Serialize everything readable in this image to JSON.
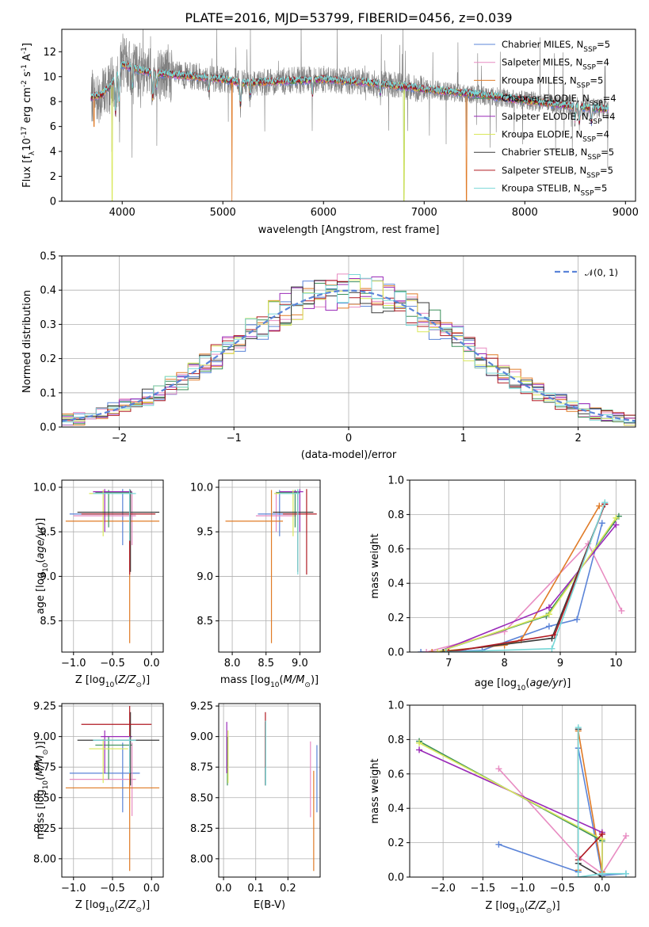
{
  "figure": {
    "title": "PLATE=2016, MJD=53799, FIBERID=0456, z=0.039"
  },
  "colors": {
    "Chabrier MILES": "#5b84d8",
    "Salpeter MILES": "#e88cc2",
    "Kroupa MILES": "#e07b27",
    "Chabrier ELODIE": "#3c8f5a",
    "Salpeter ELODIE": "#9a2ab8",
    "Kroupa ELODIE": "#d9e85a",
    "Chabrier STELIB": "#3a3a3a",
    "Salpeter STELIB": "#b01a22",
    "Kroupa STELIB": "#78d7d7",
    "data": "#7f7f7f",
    "gauss": "#5b84d8",
    "grid": "#b0b0b0"
  },
  "chart_data": [
    {
      "id": "spectrum",
      "type": "line",
      "xlabel": "wavelength [Angstrom, rest frame]",
      "ylabel_parts": [
        "Flux [f",
        "λ",
        "10",
        "-17",
        " erg cm",
        "-2",
        " s",
        "-1",
        " A",
        "-1",
        "]"
      ],
      "xlim": [
        3400,
        9100
      ],
      "ylim": [
        0,
        13.8
      ],
      "xticks": [
        4000,
        5000,
        6000,
        7000,
        8000,
        9000
      ],
      "yticks": [
        0,
        2,
        4,
        6,
        8,
        10,
        12
      ],
      "grid": false,
      "legend_position": "top-right",
      "legend": [
        {
          "model": "Chabrier MILES",
          "n": "5"
        },
        {
          "model": "Salpeter MILES",
          "n": "4"
        },
        {
          "model": "Kroupa MILES",
          "n": "5"
        },
        {
          "model": "Chabrier ELODIE",
          "n": "4"
        },
        {
          "model": "Salpeter ELODIE",
          "n": "4"
        },
        {
          "model": "Kroupa ELODIE",
          "n": "4"
        },
        {
          "model": "Chabrier STELIB",
          "n": "5"
        },
        {
          "model": "Salpeter STELIB",
          "n": "5"
        },
        {
          "model": "Kroupa STELIB",
          "n": "5"
        }
      ],
      "continuum": [
        [
          3690,
          8.3
        ],
        [
          3800,
          8.6
        ],
        [
          3900,
          9.4
        ],
        [
          4000,
          11.0
        ],
        [
          4100,
          10.7
        ],
        [
          4300,
          10.3
        ],
        [
          4600,
          10.1
        ],
        [
          5000,
          9.8
        ],
        [
          5200,
          9.5
        ],
        [
          5500,
          9.6
        ],
        [
          6000,
          9.8
        ],
        [
          6500,
          9.5
        ],
        [
          7000,
          9.0
        ],
        [
          7500,
          8.6
        ],
        [
          8000,
          8.1
        ],
        [
          8500,
          7.6
        ],
        [
          8830,
          7.4
        ]
      ],
      "features": [
        {
          "x": 3934,
          "depth": 3.0
        },
        {
          "x": 3969,
          "depth": 2.5
        },
        {
          "x": 4102,
          "depth": 1.5
        },
        {
          "x": 4304,
          "depth": 2.0
        },
        {
          "x": 4340,
          "depth": 1.2
        },
        {
          "x": 4861,
          "depth": 1.0
        },
        {
          "x": 5175,
          "depth": 1.8
        },
        {
          "x": 5270,
          "depth": 0.9
        },
        {
          "x": 5890,
          "depth": 1.2
        },
        {
          "x": 6563,
          "depth": 0.8
        },
        {
          "x": 8498,
          "depth": 1.0
        },
        {
          "x": 8542,
          "depth": 1.3
        },
        {
          "x": 8662,
          "depth": 1.1
        }
      ],
      "model_gaps": [
        {
          "model": "Kroupa MILES",
          "x": 3720,
          "to": 6
        },
        {
          "model": "Kroupa MILES",
          "x": 5090,
          "to": 0
        },
        {
          "model": "Kroupa MILES",
          "x": 7420,
          "to": 0
        },
        {
          "model": "Chabrier ELODIE",
          "x": 6800,
          "to": 0
        },
        {
          "model": "Kroupa ELODIE",
          "x": 3900,
          "to": 0
        },
        {
          "model": "Kroupa ELODIE",
          "x": 6800,
          "to": 0
        }
      ]
    },
    {
      "id": "residuals",
      "type": "step",
      "xlabel": "(data-model)/error",
      "ylabel": "Normed distribution",
      "xlim": [
        -2.5,
        2.5
      ],
      "ylim": [
        0,
        0.5
      ],
      "xticks": [
        -2,
        -1,
        0,
        1,
        2
      ],
      "xtick_labels": [
        "−2",
        "−1",
        "0",
        "1",
        "2"
      ],
      "yticks": [
        0,
        0.1,
        0.2,
        0.3,
        0.4,
        0.5
      ],
      "ytick_labels": [
        "0.0",
        "0.1",
        "0.2",
        "0.3",
        "0.4",
        "0.5"
      ],
      "grid": true,
      "bin_width": 0.1,
      "legend_position": "top-right",
      "legend_label": "𝒩(0, 1)"
    },
    {
      "id": "age-vs-Z",
      "type": "errorbar",
      "xlabel": "Z [log10(Z/Z☉)]",
      "ylabel": "age  [log10(age/yr)]",
      "xlim": [
        -1.15,
        0.15
      ],
      "ylim": [
        8.15,
        10.08
      ],
      "xticks": [
        -1.0,
        -0.5,
        0.0
      ],
      "xtick_labels": [
        "−1.0",
        "−0.5",
        "0.0"
      ],
      "yticks": [
        8.5,
        9.0,
        9.5,
        10.0
      ],
      "ytick_labels": [
        "8.5",
        "9.0",
        "9.5",
        "10.0"
      ],
      "grid": true,
      "points": [
        {
          "model": "Chabrier MILES",
          "x": -0.37,
          "xlo": -1.05,
          "xhi": -0.2,
          "y": 9.7,
          "ylo": 9.35,
          "yhi": 9.98
        },
        {
          "model": "Salpeter MILES",
          "x": -0.25,
          "xlo": -1.0,
          "xhi": -0.2,
          "y": 9.68,
          "ylo": 9.35,
          "yhi": 9.95
        },
        {
          "model": "Kroupa MILES",
          "x": -0.28,
          "xlo": -1.1,
          "xhi": 0.1,
          "y": 9.62,
          "ylo": 8.25,
          "yhi": 9.97
        },
        {
          "model": "Chabrier ELODIE",
          "x": -0.55,
          "xlo": -0.72,
          "xhi": -0.25,
          "y": 9.94,
          "ylo": 9.55,
          "yhi": 9.97
        },
        {
          "model": "Salpeter ELODIE",
          "x": -0.6,
          "xlo": -0.75,
          "xhi": -0.25,
          "y": 9.95,
          "ylo": 9.5,
          "yhi": 9.98
        },
        {
          "model": "Kroupa ELODIE",
          "x": -0.62,
          "xlo": -0.8,
          "xhi": -0.3,
          "y": 9.93,
          "ylo": 9.45,
          "yhi": 9.97
        },
        {
          "model": "Chabrier STELIB",
          "x": -0.27,
          "xlo": -0.95,
          "xhi": 0.1,
          "y": 9.72,
          "ylo": 9.05,
          "yhi": 9.97
        },
        {
          "model": "Salpeter STELIB",
          "x": -0.28,
          "xlo": -0.9,
          "xhi": 0.05,
          "y": 9.7,
          "ylo": 9.02,
          "yhi": 9.98
        },
        {
          "model": "Kroupa STELIB",
          "x": -0.28,
          "xlo": -0.75,
          "xhi": -0.2,
          "y": 9.93,
          "ylo": 9.4,
          "yhi": 9.98
        }
      ]
    },
    {
      "id": "age-vs-mass",
      "type": "errorbar",
      "xlabel": "mass [log10(M/M☉)]",
      "ylabel": "",
      "xlim": [
        7.8,
        9.3
      ],
      "ylim": [
        8.15,
        10.08
      ],
      "xticks": [
        8.0,
        8.5,
        9.0
      ],
      "xtick_labels": [
        "8.0",
        "8.5",
        "9.0"
      ],
      "yticks": [
        8.5,
        9.0,
        9.5,
        10.0
      ],
      "ytick_labels": [
        "8.5",
        "9.0",
        "9.5",
        "10.0"
      ],
      "grid": true,
      "points": [
        {
          "model": "Chabrier MILES",
          "x": 8.7,
          "xlo": 8.38,
          "xhi": 8.95,
          "y": 9.7,
          "ylo": 9.45,
          "yhi": 9.97
        },
        {
          "model": "Salpeter MILES",
          "x": 8.65,
          "xlo": 8.35,
          "xhi": 8.95,
          "y": 9.68,
          "ylo": 9.5,
          "yhi": 9.95
        },
        {
          "model": "Kroupa MILES",
          "x": 8.58,
          "xlo": 7.9,
          "xhi": 8.75,
          "y": 9.62,
          "ylo": 8.25,
          "yhi": 9.97
        },
        {
          "model": "Chabrier ELODIE",
          "x": 8.93,
          "xlo": 8.65,
          "xhi": 9.0,
          "y": 9.94,
          "ylo": 9.55,
          "yhi": 9.97
        },
        {
          "model": "Salpeter ELODIE",
          "x": 9.0,
          "xlo": 8.7,
          "xhi": 9.05,
          "y": 9.95,
          "ylo": 9.5,
          "yhi": 9.98
        },
        {
          "model": "Kroupa ELODIE",
          "x": 8.9,
          "xlo": 8.62,
          "xhi": 8.98,
          "y": 9.93,
          "ylo": 9.45,
          "yhi": 9.97
        },
        {
          "model": "Chabrier STELIB",
          "x": 8.97,
          "xlo": 8.6,
          "xhi": 9.2,
          "y": 9.72,
          "ylo": 9.05,
          "yhi": 9.97
        },
        {
          "model": "Salpeter STELIB",
          "x": 9.1,
          "xlo": 8.75,
          "xhi": 9.25,
          "y": 9.7,
          "ylo": 9.02,
          "yhi": 9.98
        },
        {
          "model": "Kroupa STELIB",
          "x": 8.97,
          "xlo": 8.7,
          "xhi": 9.0,
          "y": 9.93,
          "ylo": 9.02,
          "yhi": 9.98
        }
      ]
    },
    {
      "id": "weight-vs-age",
      "type": "line",
      "xlabel": "age  [log10(age/yr)]",
      "ylabel": "mass weight",
      "xlim": [
        6.3,
        10.35
      ],
      "ylim": [
        0,
        1.0
      ],
      "xticks": [
        7,
        8,
        9,
        10
      ],
      "xtick_labels": [
        "7",
        "8",
        "9",
        "10"
      ],
      "yticks": [
        0,
        0.2,
        0.4,
        0.6,
        0.8,
        1.0
      ],
      "ytick_labels": [
        "0.0",
        "0.2",
        "0.4",
        "0.6",
        "0.8",
        "1.0"
      ],
      "grid": true,
      "series": [
        {
          "model": "Chabrier MILES",
          "x": [
            6.5,
            7.6,
            8.8,
            9.3,
            9.75
          ],
          "y": [
            0.0,
            0.01,
            0.15,
            0.19,
            0.75
          ]
        },
        {
          "model": "Salpeter MILES",
          "x": [
            6.6,
            8.0,
            9.5,
            10.1
          ],
          "y": [
            0.0,
            0.12,
            0.63,
            0.24
          ]
        },
        {
          "model": "Kroupa MILES",
          "x": [
            6.7,
            8.0,
            8.3,
            9.7
          ],
          "y": [
            0.0,
            0.04,
            0.07,
            0.85
          ]
        },
        {
          "model": "Chabrier ELODIE",
          "x": [
            6.8,
            8.75,
            10.05
          ],
          "y": [
            0.0,
            0.21,
            0.79
          ]
        },
        {
          "model": "Salpeter ELODIE",
          "x": [
            6.8,
            8.8,
            10.0
          ],
          "y": [
            0.0,
            0.26,
            0.74
          ]
        },
        {
          "model": "Kroupa ELODIE",
          "x": [
            6.8,
            8.8,
            10.0
          ],
          "y": [
            0.0,
            0.22,
            0.78
          ]
        },
        {
          "model": "Chabrier STELIB",
          "x": [
            6.9,
            8.85,
            9.8
          ],
          "y": [
            0.0,
            0.08,
            0.86
          ]
        },
        {
          "model": "Salpeter STELIB",
          "x": [
            7.0,
            8.9,
            9.8
          ],
          "y": [
            0.0,
            0.1,
            0.86
          ]
        },
        {
          "model": "Kroupa STELIB",
          "x": [
            6.95,
            8.85,
            9.8
          ],
          "y": [
            0.0,
            0.02,
            0.87
          ]
        }
      ]
    },
    {
      "id": "mass-vs-Z",
      "type": "errorbar",
      "xlabel": "Z [log10(Z/Z☉)]",
      "ylabel": "mass [log10(M/M☉)]",
      "xlim": [
        -1.15,
        0.15
      ],
      "ylim": [
        7.85,
        9.27
      ],
      "xticks": [
        -1.0,
        -0.5,
        0.0
      ],
      "xtick_labels": [
        "−1.0",
        "−0.5",
        "0.0"
      ],
      "yticks": [
        8.0,
        8.25,
        8.5,
        8.75,
        9.0,
        9.25
      ],
      "ytick_labels": [
        "8.00",
        "8.25",
        "8.50",
        "8.75",
        "9.00",
        "9.25"
      ],
      "grid": true,
      "points": [
        {
          "model": "Chabrier MILES",
          "x": -0.37,
          "xlo": -1.05,
          "xhi": -0.15,
          "y": 8.7,
          "ylo": 8.38,
          "yhi": 8.95
        },
        {
          "model": "Salpeter MILES",
          "x": -0.25,
          "xlo": -1.05,
          "xhi": -0.2,
          "y": 8.65,
          "ylo": 8.35,
          "yhi": 8.95
        },
        {
          "model": "Kroupa MILES",
          "x": -0.28,
          "xlo": -1.1,
          "xhi": 0.1,
          "y": 8.58,
          "ylo": 7.9,
          "yhi": 8.75
        },
        {
          "model": "Chabrier ELODIE",
          "x": -0.55,
          "xlo": -0.72,
          "xhi": -0.25,
          "y": 8.93,
          "ylo": 8.65,
          "yhi": 9.0
        },
        {
          "model": "Salpeter ELODIE",
          "x": -0.6,
          "xlo": -0.65,
          "xhi": -0.25,
          "y": 9.0,
          "ylo": 8.7,
          "yhi": 9.05
        },
        {
          "model": "Kroupa ELODIE",
          "x": -0.62,
          "xlo": -0.8,
          "xhi": -0.3,
          "y": 8.9,
          "ylo": 8.62,
          "yhi": 8.98
        },
        {
          "model": "Chabrier STELIB",
          "x": -0.27,
          "xlo": -0.95,
          "xhi": 0.1,
          "y": 8.97,
          "ylo": 8.6,
          "yhi": 9.2
        },
        {
          "model": "Salpeter STELIB",
          "x": -0.28,
          "xlo": -0.9,
          "xhi": 0.0,
          "y": 9.1,
          "ylo": 8.75,
          "yhi": 9.25
        },
        {
          "model": "Kroupa STELIB",
          "x": -0.28,
          "xlo": -0.75,
          "xhi": -0.2,
          "y": 8.97,
          "ylo": 8.7,
          "yhi": 9.0
        }
      ]
    },
    {
      "id": "mass-vs-ebv",
      "type": "errorbar",
      "xlabel": "E(B-V)",
      "ylabel": "",
      "xlim": [
        -0.015,
        0.3
      ],
      "ylim": [
        7.85,
        9.27
      ],
      "xticks": [
        0.0,
        0.1,
        0.2
      ],
      "xtick_labels": [
        "0.0",
        "0.1",
        "0.2"
      ],
      "yticks": [
        8.0,
        8.25,
        8.5,
        8.75,
        9.0,
        9.25
      ],
      "ytick_labels": [
        "8.00",
        "8.25",
        "8.50",
        "8.75",
        "9.00",
        "9.25"
      ],
      "grid": true,
      "points": [
        {
          "model": "Chabrier MILES",
          "x": 0.29,
          "y": 8.7,
          "ylo": 8.38,
          "yhi": 8.93
        },
        {
          "model": "Salpeter MILES",
          "x": 0.27,
          "y": 8.65,
          "ylo": 8.34,
          "yhi": 8.96
        },
        {
          "model": "Kroupa MILES",
          "x": 0.28,
          "y": 8.58,
          "ylo": 7.9,
          "yhi": 8.72
        },
        {
          "model": "Chabrier ELODIE",
          "x": 0.012,
          "y": 8.93,
          "ylo": 8.6,
          "yhi": 9.0
        },
        {
          "model": "Salpeter ELODIE",
          "x": 0.01,
          "y": 9.0,
          "ylo": 8.7,
          "yhi": 9.12
        },
        {
          "model": "Kroupa ELODIE",
          "x": 0.014,
          "y": 8.9,
          "ylo": 8.62,
          "yhi": 9.05
        },
        {
          "model": "Chabrier STELIB",
          "x": 0.13,
          "y": 8.97,
          "ylo": 8.6,
          "yhi": 9.12
        },
        {
          "model": "Salpeter STELIB",
          "x": 0.13,
          "y": 9.1,
          "ylo": 8.75,
          "yhi": 9.2
        },
        {
          "model": "Kroupa STELIB",
          "x": 0.131,
          "y": 8.97,
          "ylo": 8.6,
          "yhi": 9.13
        }
      ]
    },
    {
      "id": "weight-vs-Z",
      "type": "line",
      "xlabel": "Z [log10(Z/Z☉)]",
      "ylabel": "mass weight",
      "xlim": [
        -2.42,
        0.42
      ],
      "ylim": [
        0,
        1.0
      ],
      "xticks": [
        -2.0,
        -1.5,
        -1.0,
        -0.5,
        0.0
      ],
      "xtick_labels": [
        "−2.0",
        "−1.5",
        "−1.0",
        "−0.5",
        "0.0"
      ],
      "yticks": [
        0,
        0.2,
        0.4,
        0.6,
        0.8,
        1.0
      ],
      "ytick_labels": [
        "0.0",
        "0.2",
        "0.4",
        "0.6",
        "0.8",
        "1.0"
      ],
      "grid": true,
      "series": [
        {
          "model": "Chabrier MILES",
          "x": [
            -1.3,
            -0.3,
            -0.3,
            0.0,
            0.0,
            0.3
          ],
          "y": [
            0.19,
            0.03,
            0.75,
            0.01,
            0.01,
            0.02
          ]
        },
        {
          "model": "Salpeter MILES",
          "x": [
            -1.3,
            -0.3,
            0.0,
            0.3
          ],
          "y": [
            0.63,
            0.12,
            0.02,
            0.24
          ]
        },
        {
          "model": "Kroupa MILES",
          "x": [
            -0.3,
            -0.3,
            0.0
          ],
          "y": [
            0.04,
            0.85,
            0.03
          ]
        },
        {
          "model": "Chabrier ELODIE",
          "x": [
            -2.3,
            0.0,
            0.0
          ],
          "y": [
            0.79,
            0.21,
            0.0
          ]
        },
        {
          "model": "Salpeter ELODIE",
          "x": [
            -2.3,
            0.0,
            0.0
          ],
          "y": [
            0.74,
            0.26,
            0.0
          ]
        },
        {
          "model": "Kroupa ELODIE",
          "x": [
            -2.3,
            0.0,
            0.0
          ],
          "y": [
            0.78,
            0.22,
            0.0
          ]
        },
        {
          "model": "Chabrier STELIB",
          "x": [
            -0.3,
            -0.3,
            0.0
          ],
          "y": [
            0.86,
            0.08,
            0.0
          ]
        },
        {
          "model": "Salpeter STELIB",
          "x": [
            -0.3,
            0.0
          ],
          "y": [
            0.1,
            0.25
          ]
        },
        {
          "model": "Kroupa STELIB",
          "x": [
            -0.3,
            -0.3,
            0.0,
            0.3
          ],
          "y": [
            0.87,
            0.0,
            0.02,
            0.02
          ]
        }
      ]
    }
  ]
}
